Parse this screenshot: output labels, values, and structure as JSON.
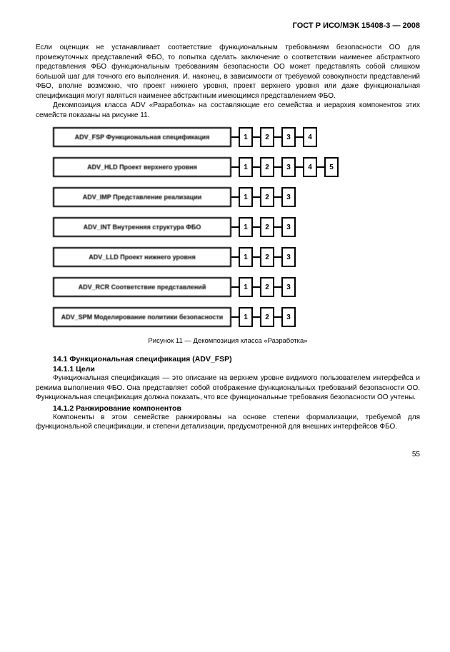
{
  "header": "ГОСТ Р ИСО/МЭК 15408-3 — 2008",
  "para1": "Если оценщик не устанавливает соответствие функциональным требованиям безопасности ОО для промежуточных представлений ФБО, то попытка сделать заключение о соответствии наименее абстрактного представления ФБО функциональным требованиям безопасности ОО может представлять собой слишком большой шаг для точного его выполнения. И, наконец, в зависимости от требуемой совокупности представлений ФБО, вполне возможно, что проект нижнего уровня, проект верхнего уровня или даже функциональная спецификация могут являться наименее абстрактным имеющимся представлением ФБО.",
  "para2": "Декомпозиция класса ADV «Разработка» на составляющие его семейства и иерархия компонентов этих семейств показаны на рисунке 11.",
  "families": [
    {
      "label": "ADV_FSP Функциональная спецификация",
      "count": 4
    },
    {
      "label": "ADV_HLD Проект верхнего уровня",
      "count": 5
    },
    {
      "label": "ADV_IMP Представление реализации",
      "count": 3
    },
    {
      "label": "ADV_INT Внутренняя структура ФБО",
      "count": 3
    },
    {
      "label": "ADV_LLD Проект нижнего уровня",
      "count": 3
    },
    {
      "label": "ADV_RCR Соответствие представлений",
      "count": 3
    },
    {
      "label": "ADV_SPM Моделирование политики безопасности",
      "count": 3
    }
  ],
  "fig_caption": "Рисунок 11 — Декомпозиция класса «Разработка»",
  "sec14_1": "14.1 Функциональная спецификация (ADV_FSP)",
  "sec14_1_1": "14.1.1 Цели",
  "para3": "Функциональная спецификация — это описание на верхнем уровне видимого пользователем интерфейса и режима выполнения ФБО. Она представляет собой отображение функциональных требований безопасности ОО. Функциональная спецификация должна показать, что все функциональные требования безопасности ОО учтены.",
  "sec14_1_2": "14.1.2 Ранжирование компонентов",
  "para4": "Компоненты в этом семействе ранжированы на основе степени формализации, требуемой для функциональной спецификации, и степени детализации, предусмотренной для внешних интерфейсов ФБО.",
  "page_number": "55"
}
